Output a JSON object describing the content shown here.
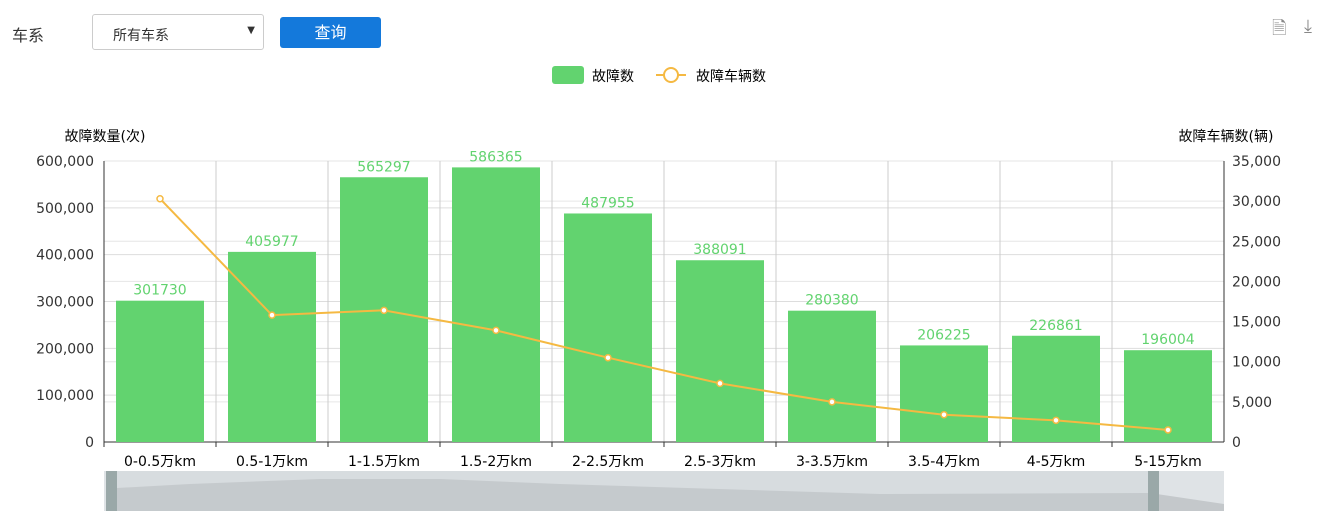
{
  "filter": {
    "label": "车系",
    "select_value": "所有车系",
    "query_button": "查询"
  },
  "toolbar": {
    "icons": [
      "data-view-icon",
      "download-icon"
    ]
  },
  "chart_data": {
    "type": "bar",
    "categories": [
      "0-0.5万km",
      "0.5-1万km",
      "1-1.5万km",
      "1.5-2万km",
      "2-2.5万km",
      "2.5-3万km",
      "3-3.5万km",
      "3.5-4万km",
      "4-5万km",
      "5-15万km"
    ],
    "series": [
      {
        "name": "故障数",
        "type": "bar",
        "axis": "left",
        "color": "#62d36f",
        "values": [
          301730,
          405977,
          565297,
          586365,
          487955,
          388091,
          280380,
          206225,
          226861,
          196004
        ]
      },
      {
        "name": "故障车辆数",
        "type": "line",
        "axis": "right",
        "color": "#f5b942",
        "values": [
          30300,
          15800,
          16400,
          13900,
          10500,
          7300,
          5000,
          3400,
          2700,
          1500
        ]
      }
    ],
    "ylabel": "故障数量(次)",
    "ylabel_right": "故障车辆数(辆)",
    "ylim": [
      0,
      600000
    ],
    "ylim_right": [
      0,
      35000
    ],
    "yticks": [
      "0",
      "100,000",
      "200,000",
      "300,000",
      "400,000",
      "500,000",
      "600,000"
    ],
    "yticks_right": [
      "0",
      "5,000",
      "10,000",
      "15,000",
      "20,000",
      "25,000",
      "30,000",
      "35,000"
    ],
    "grid": true,
    "legend": "top-center",
    "data_zoom": true
  }
}
